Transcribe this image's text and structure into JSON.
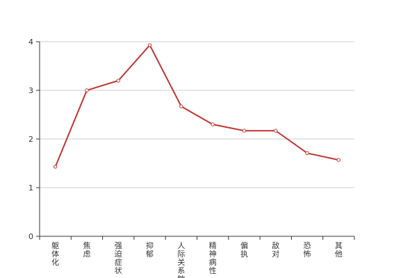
{
  "chart_data": {
    "type": "line",
    "categories": [
      "躯体化",
      "焦虑",
      "强迫症状",
      "抑郁",
      "人际关系敏感",
      "精神病性",
      "偏执",
      "敌对",
      "恐怖",
      "其他"
    ],
    "series": [
      {
        "values": [
          1.43,
          3.0,
          3.2,
          3.93,
          2.67,
          2.3,
          2.17,
          2.17,
          1.71,
          1.57
        ]
      }
    ],
    "ylim": [
      0,
      4
    ],
    "yticks": [
      0,
      1,
      2,
      3,
      4
    ],
    "grid": true,
    "line_color": "#c23531"
  }
}
